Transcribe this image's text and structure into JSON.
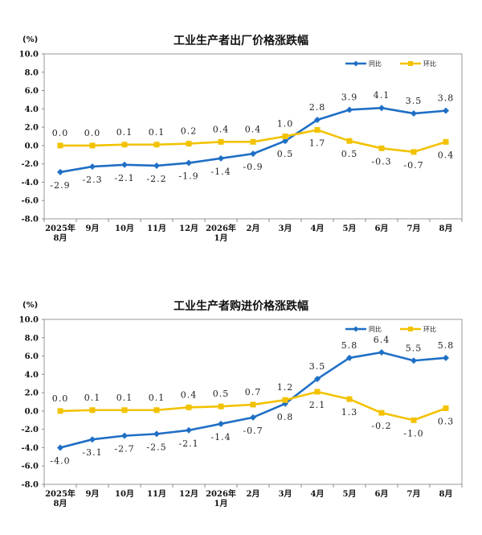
{
  "chart_data": [
    {
      "type": "line",
      "title": "工业生产者出厂价格涨跌幅",
      "unit": "(%)",
      "categories": [
        "2025年\n8月",
        "9月",
        "10月",
        "11月",
        "12月",
        "2026年\n1月",
        "2月",
        "3月",
        "4月",
        "5月",
        "6月",
        "7月",
        "8月"
      ],
      "ylim": [
        -8.0,
        10.0
      ],
      "yticks": [
        "10.0",
        "8.0",
        "6.0",
        "4.0",
        "2.0",
        "0.0",
        "-2.0",
        "-4.0",
        "-6.0",
        "-8.0"
      ],
      "legend": "top-right",
      "series": [
        {
          "name": "同比",
          "color": "#1f6fc5",
          "values": [
            -2.9,
            -2.3,
            -2.1,
            -2.2,
            -1.9,
            -1.4,
            -0.9,
            0.5,
            2.8,
            3.9,
            4.1,
            3.5,
            3.8
          ],
          "labels": [
            "-2.9",
            "-2.3",
            "-2.1",
            "-2.2",
            "-1.9",
            "-1.4",
            "-0.9",
            "0.5",
            "2.8",
            "3.9",
            "4.1",
            "3.5",
            "3.8"
          ]
        },
        {
          "name": "环比",
          "color": "#f2c200",
          "values": [
            0.0,
            0.0,
            0.1,
            0.1,
            0.2,
            0.4,
            0.4,
            1.0,
            1.7,
            0.5,
            -0.3,
            -0.7,
            0.4
          ],
          "labels": [
            "0.0",
            "0.0",
            "0.1",
            "0.1",
            "0.2",
            "0.4",
            "0.4",
            "1.0",
            "1.7",
            "0.5",
            "-0.3",
            "-0.7",
            "0.4"
          ]
        }
      ]
    },
    {
      "type": "line",
      "title": "工业生产者购进价格涨跌幅",
      "unit": "(%)",
      "categories": [
        "2025年\n8月",
        "9月",
        "10月",
        "11月",
        "12月",
        "2026年\n1月",
        "2月",
        "3月",
        "4月",
        "5月",
        "6月",
        "7月",
        "8月"
      ],
      "ylim": [
        -8.0,
        10.0
      ],
      "yticks": [
        "10.0",
        "8.0",
        "6.0",
        "4.0",
        "2.0",
        "0.0",
        "-2.0",
        "-4.0",
        "-6.0",
        "-8.0"
      ],
      "legend": "top-right",
      "series": [
        {
          "name": "同比",
          "color": "#1f6fc5",
          "values": [
            -4.0,
            -3.1,
            -2.7,
            -2.5,
            -2.1,
            -1.4,
            -0.7,
            0.8,
            3.5,
            5.8,
            6.4,
            5.5,
            5.8
          ],
          "labels": [
            "-4.0",
            "-3.1",
            "-2.7",
            "-2.5",
            "-2.1",
            "-1.4",
            "-0.7",
            "0.8",
            "3.5",
            "5.8",
            "6.4",
            "5.5",
            "5.8"
          ]
        },
        {
          "name": "环比",
          "color": "#f2c200",
          "values": [
            0.0,
            0.1,
            0.1,
            0.1,
            0.4,
            0.5,
            0.7,
            1.2,
            2.1,
            1.3,
            -0.2,
            -1.0,
            0.3
          ],
          "labels": [
            "0.0",
            "0.1",
            "0.1",
            "0.1",
            "0.4",
            "0.5",
            "0.7",
            "1.2",
            "2.1",
            "1.3",
            "-0.2",
            "-1.0",
            "0.3"
          ]
        }
      ]
    }
  ]
}
